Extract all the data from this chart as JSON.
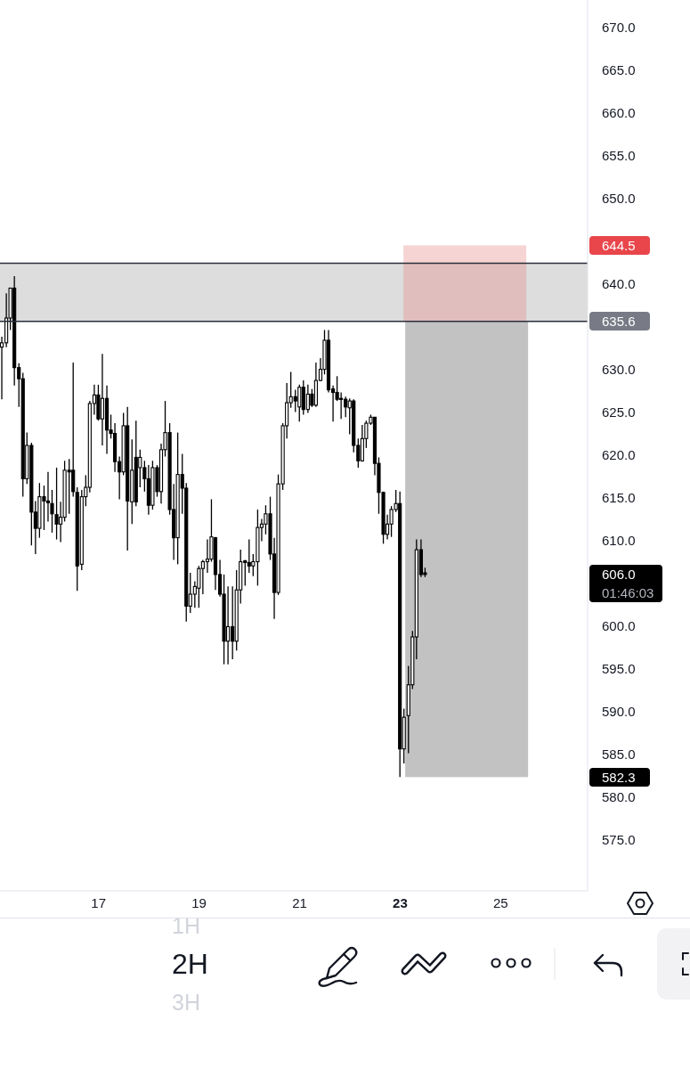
{
  "chart_data": {
    "type": "candlestick",
    "color": "#000000",
    "x": [
      15.08,
      15.17,
      15.25,
      15.33,
      15.42,
      15.5,
      15.58,
      15.67,
      15.75,
      15.83,
      15.92,
      16,
      16.08,
      16.17,
      16.25,
      16.33,
      16.42,
      16.5,
      16.58,
      16.67,
      16.75,
      16.83,
      16.92,
      17,
      17.08,
      17.17,
      17.25,
      17.33,
      17.42,
      17.5,
      17.58,
      17.67,
      17.75,
      17.83,
      17.92,
      18,
      18.08,
      18.17,
      18.25,
      18.33,
      18.42,
      18.5,
      18.58,
      18.67,
      18.75,
      18.83,
      18.92,
      19,
      19.08,
      19.17,
      19.25,
      19.33,
      19.42,
      19.5,
      19.58,
      19.67,
      19.75,
      19.83,
      19.92,
      20,
      20.08,
      20.17,
      20.25,
      20.33,
      20.42,
      20.5,
      20.58,
      20.67,
      20.75,
      20.83,
      20.92,
      21,
      21.08,
      21.17,
      21.25,
      21.33,
      21.42,
      21.5,
      21.58,
      21.67,
      21.75,
      21.83,
      21.92,
      22,
      22.08,
      22.17,
      22.25,
      22.33,
      22.42,
      22.5,
      22.58,
      22.67,
      22.75,
      22.83,
      22.92,
      23,
      23.08,
      23.17,
      23.25,
      23.33,
      23.42,
      23.5
    ],
    "ohlc": [
      [
        632.6,
        633.8,
        626.5,
        633.1
      ],
      [
        633.1,
        638.9,
        632.6,
        636.0
      ],
      [
        636.0,
        639.5,
        634.6,
        639.5
      ],
      [
        639.5,
        640.9,
        628.1,
        630.2
      ],
      [
        630.2,
        630.7,
        625.6,
        628.9
      ],
      [
        628.9,
        629.6,
        615.1,
        617.2
      ],
      [
        617.2,
        622.6,
        616.6,
        621.1
      ],
      [
        621.1,
        621.4,
        609.4,
        613.3
      ],
      [
        613.3,
        614.6,
        608.4,
        611.4
      ],
      [
        611.4,
        616.7,
        610.3,
        615.1
      ],
      [
        615.1,
        616.4,
        611.2,
        614.6
      ],
      [
        614.6,
        618.0,
        612.2,
        614.4
      ],
      [
        614.3,
        615.9,
        610.9,
        613.1
      ],
      [
        613.0,
        618.5,
        610.1,
        611.9
      ],
      [
        611.9,
        614.5,
        609.8,
        612.7
      ],
      [
        612.7,
        619.3,
        612.2,
        618.2
      ],
      [
        618.2,
        619.5,
        613.1,
        618.0
      ],
      [
        618.2,
        630.8,
        615.1,
        615.7
      ],
      [
        615.6,
        616.2,
        604.1,
        607.0
      ],
      [
        607.2,
        615.9,
        606.5,
        615.1
      ],
      [
        615.1,
        617.6,
        614.0,
        616.2
      ],
      [
        616.2,
        626.3,
        615.6,
        626.0
      ],
      [
        626.0,
        628.2,
        624.7,
        627.0
      ],
      [
        627.0,
        628.2,
        624.0,
        624.2
      ],
      [
        624.2,
        631.8,
        621.1,
        626.6
      ],
      [
        626.6,
        628.1,
        620.1,
        622.9
      ],
      [
        622.9,
        624.7,
        621.9,
        622.5
      ],
      [
        622.5,
        623.7,
        618.0,
        619.2
      ],
      [
        619.2,
        619.8,
        614.8,
        618.0
      ],
      [
        618.0,
        624.9,
        617.6,
        623.4
      ],
      [
        623.4,
        625.6,
        608.8,
        614.6
      ],
      [
        614.5,
        621.8,
        611.9,
        618.2
      ],
      [
        619.7,
        624.0,
        614.0,
        614.5
      ],
      [
        618.5,
        620.6,
        616.2,
        619.7
      ],
      [
        618.5,
        619.3,
        615.7,
        617.2
      ],
      [
        617.2,
        618.8,
        613.0,
        614.1
      ],
      [
        614.1,
        619.3,
        613.6,
        618.5
      ],
      [
        618.5,
        618.8,
        615.1,
        615.7
      ],
      [
        615.7,
        621.3,
        614.3,
        620.6
      ],
      [
        620.6,
        626.3,
        619.8,
        622.6
      ],
      [
        622.6,
        623.7,
        613.0,
        613.6
      ],
      [
        613.6,
        616.6,
        607.7,
        610.3
      ],
      [
        610.3,
        622.6,
        607.2,
        617.7
      ],
      [
        617.7,
        620.1,
        613.1,
        616.1
      ],
      [
        616.1,
        616.7,
        600.5,
        602.3
      ],
      [
        602.3,
        606.2,
        601.5,
        603.7
      ],
      [
        603.7,
        605.2,
        602.1,
        604.6
      ],
      [
        604.4,
        607.0,
        602.1,
        606.7
      ],
      [
        606.7,
        607.7,
        603.7,
        607.5
      ],
      [
        607.5,
        610.1,
        606.2,
        607.8
      ],
      [
        607.8,
        614.8,
        607.5,
        610.4
      ],
      [
        610.3,
        610.4,
        604.2,
        606.0
      ],
      [
        606.0,
        607.7,
        603.4,
        603.7
      ],
      [
        603.7,
        606.0,
        595.5,
        598.2
      ],
      [
        598.2,
        604.6,
        595.5,
        599.9
      ],
      [
        599.9,
        604.6,
        596.1,
        598.2
      ],
      [
        598.2,
        606.5,
        597.1,
        604.2
      ],
      [
        604.2,
        608.9,
        602.6,
        607.5
      ],
      [
        607.6,
        607.7,
        604.7,
        607.4
      ],
      [
        607.4,
        610.1,
        606.2,
        607.0
      ],
      [
        607.0,
        608.4,
        605.8,
        607.5
      ],
      [
        607.5,
        613.6,
        604.7,
        611.5
      ],
      [
        611.5,
        612.5,
        609.9,
        611.9
      ],
      [
        611.9,
        614.1,
        610.7,
        613.1
      ],
      [
        613.1,
        615.1,
        607.7,
        608.4
      ],
      [
        608.4,
        610.3,
        600.8,
        603.9
      ],
      [
        603.9,
        617.7,
        603.6,
        616.6
      ],
      [
        616.6,
        623.7,
        615.9,
        623.4
      ],
      [
        623.4,
        628.4,
        621.9,
        626.1
      ],
      [
        626.1,
        629.7,
        625.5,
        626.8
      ],
      [
        626.8,
        627.6,
        625.0,
        626.3
      ],
      [
        625.6,
        628.2,
        623.9,
        627.9
      ],
      [
        627.9,
        628.7,
        624.7,
        625.3
      ],
      [
        625.3,
        628.2,
        624.9,
        627.1
      ],
      [
        627.1,
        627.7,
        625.6,
        625.8
      ],
      [
        625.8,
        630.8,
        625.6,
        628.7
      ],
      [
        628.7,
        631.3,
        628.6,
        630.0
      ],
      [
        630.0,
        634.6,
        629.4,
        633.4
      ],
      [
        633.4,
        634.6,
        627.3,
        627.6
      ],
      [
        627.7,
        628.1,
        623.9,
        627.3
      ],
      [
        627.3,
        629.2,
        626.3,
        626.5
      ],
      [
        626.6,
        627.3,
        624.2,
        626.5
      ],
      [
        626.5,
        626.8,
        624.4,
        625.6
      ],
      [
        625.5,
        626.6,
        622.4,
        626.3
      ],
      [
        626.3,
        626.5,
        620.3,
        621.1
      ],
      [
        621.1,
        621.9,
        618.5,
        619.3
      ],
      [
        619.3,
        623.5,
        619.2,
        621.9
      ],
      [
        621.9,
        624.0,
        620.8,
        623.7
      ],
      [
        623.7,
        624.7,
        623.5,
        624.4
      ],
      [
        624.4,
        624.4,
        617.6,
        619.0
      ],
      [
        619.0,
        619.7,
        613.1,
        615.6
      ],
      [
        615.6,
        615.7,
        609.6,
        610.7
      ],
      [
        610.7,
        613.0,
        610.1,
        611.9
      ],
      [
        611.9,
        614.0,
        610.4,
        613.6
      ],
      [
        613.6,
        615.9,
        613.3,
        614.3
      ],
      [
        614.3,
        615.7,
        582.3,
        585.6
      ],
      [
        585.6,
        590.3,
        583.9,
        589.3
      ],
      [
        589.5,
        595.3,
        585.1,
        593.1
      ],
      [
        593.1,
        599.4,
        592.6,
        598.7
      ],
      [
        598.7,
        610.1,
        596.1,
        608.9
      ],
      [
        608.9,
        610.1,
        605.7,
        606.0
      ],
      [
        606.2,
        606.8,
        605.7,
        606.0
      ]
    ],
    "series": [
      {
        "type": "bar",
        "x": [
          24.31
        ],
        "base": [
          635.6
        ],
        "values": [
          8.9
        ],
        "color": "#f6d4d4"
      },
      {
        "type": "bar",
        "x": [
          24.31
        ],
        "base": [
          635.6
        ],
        "values": [
          -53.3
        ],
        "color": "#c2c2c2"
      }
    ],
    "xlim": [
      15.04,
      26.73
    ],
    "xticks": [
      17,
      19,
      21,
      23,
      25
    ],
    "ylim": [
      569.0,
      673.2
    ],
    "yticks": [
      {
        "value": 575,
        "label": "575.0"
      },
      {
        "value": 580,
        "label": "580.0"
      },
      {
        "value": 585,
        "label": "585.0"
      },
      {
        "value": 590,
        "label": "590.0"
      },
      {
        "value": 595,
        "label": "595.0"
      },
      {
        "value": 600,
        "label": "600.0"
      },
      {
        "value": 610,
        "label": "610.0"
      },
      {
        "value": 615,
        "label": "615.0"
      },
      {
        "value": 620,
        "label": "620.0"
      },
      {
        "value": 625,
        "label": "625.0"
      },
      {
        "value": 630,
        "label": "630.0"
      },
      {
        "value": 640,
        "label": "640.0"
      },
      {
        "value": 650,
        "label": "650.0"
      },
      {
        "value": 655,
        "label": "655.0"
      },
      {
        "value": 660,
        "label": "660.0"
      },
      {
        "value": 665,
        "label": "665.0"
      },
      {
        "value": 670,
        "label": "670.0"
      }
    ],
    "bands": [
      {
        "axis": "y",
        "from": 635.6,
        "to": 642.4,
        "color": "#dddddd"
      }
    ],
    "ref_lines": [
      {
        "axis": "y",
        "value": 642.4,
        "color": "#2a2e39"
      },
      {
        "axis": "y",
        "value": 635.6,
        "color": "#2a2e39",
        "label": "635.6"
      }
    ],
    "annotations": [
      "644.5",
      "582.3",
      "606.0",
      "01:46:03",
      "1H",
      "2H",
      "3H"
    ]
  }
}
